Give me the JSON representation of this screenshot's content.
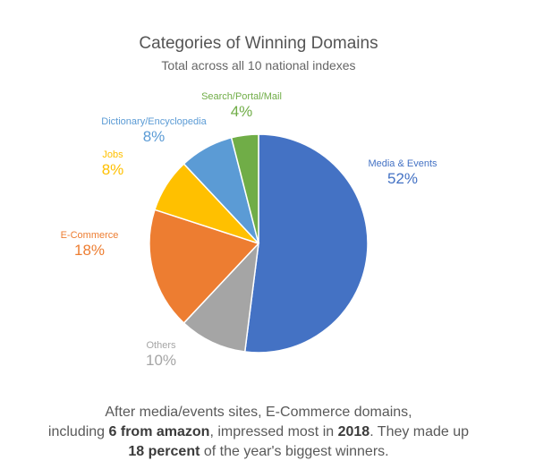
{
  "chart_data": {
    "type": "pie",
    "title": "Categories of Winning Domains",
    "subtitle": "Total across all 10 national indexes",
    "slices": [
      {
        "label": "Media & Events",
        "value": 52,
        "display": "52%",
        "color": "#4472c4"
      },
      {
        "label": "Others",
        "value": 10,
        "display": "10%",
        "color": "#a5a5a5"
      },
      {
        "label": "E-Commerce",
        "value": 18,
        "display": "18%",
        "color": "#ed7d31"
      },
      {
        "label": "Jobs",
        "value": 8,
        "display": "8%",
        "color": "#ffc000"
      },
      {
        "label": "Dictionary/Encyclopedia",
        "value": 8,
        "display": "8%",
        "color": "#5b9bd5"
      },
      {
        "label": "Search/Portal/Mail",
        "value": 4,
        "display": "4%",
        "color": "#70ad47"
      }
    ],
    "start_angle_deg": 0,
    "direction": "clockwise"
  },
  "caption": {
    "line1": "After media/events sites, E-Commerce domains,",
    "line2_pre": "including ",
    "line2_bold1": "6 from amazon",
    "line2_mid": ", impressed most in ",
    "line2_bold2": "2018",
    "line2_post": ". They made up",
    "line3_bold": "18 percent",
    "line3_post": " of the year's biggest winners."
  }
}
